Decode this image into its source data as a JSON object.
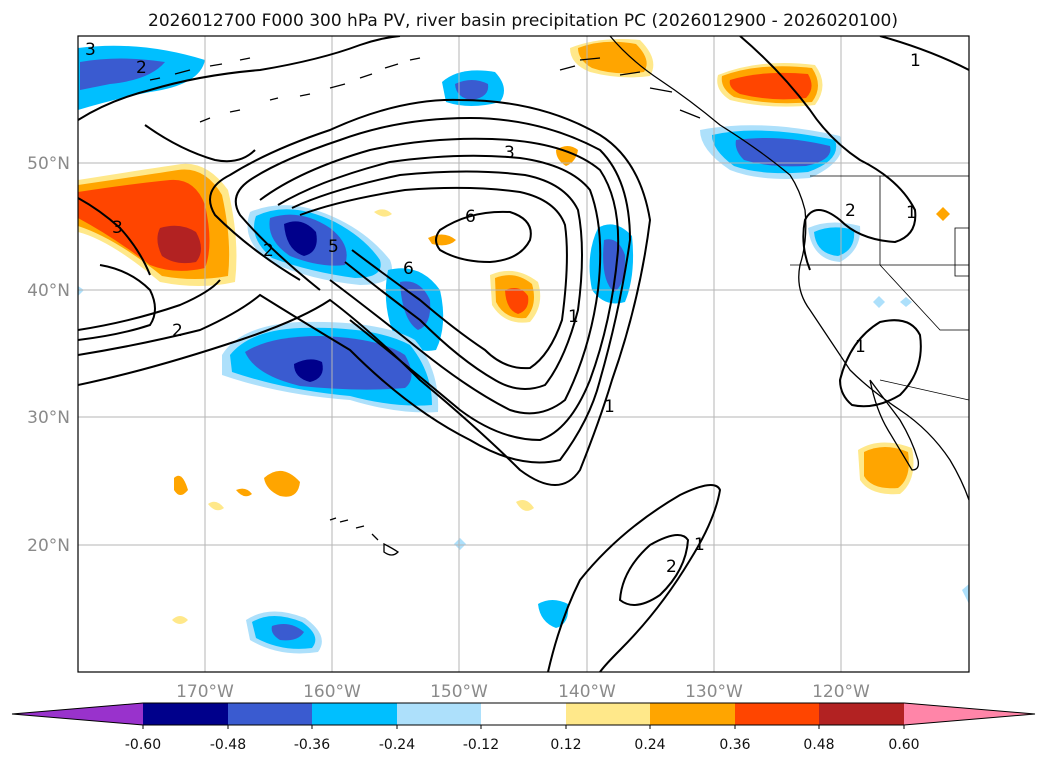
{
  "title": "2026012700 F000 300 hPa PV, river basin precipitation PC (2026012900 - 2026020100)",
  "map": {
    "lat_ticks": [
      "50°N",
      "40°N",
      "30°N",
      "20°N"
    ],
    "lon_ticks": [
      "170°W",
      "160°W",
      "150°W",
      "140°W",
      "130°W",
      "120°W"
    ],
    "extent": {
      "lon": [
        -180,
        -110
      ],
      "lat": [
        10,
        60
      ]
    }
  },
  "pv_contour_labels": [
    "3",
    "2",
    "3",
    "2",
    "3",
    "6",
    "2",
    "5",
    "6",
    "1",
    "1",
    "2",
    "1",
    "2",
    "1",
    "1",
    "1"
  ],
  "colorbar": {
    "ticks": [
      "-0.60",
      "-0.48",
      "-0.36",
      "-0.24",
      "-0.12",
      "0.12",
      "0.24",
      "0.36",
      "0.48",
      "0.60"
    ],
    "colors": {
      "lt_-0.60": "#9932cc",
      "-0.60_-0.48": "#00008b",
      "-0.48_-0.36": "#3a5bd0",
      "-0.36_-0.24": "#00bfff",
      "-0.24_-0.12": "#ade0fb",
      "-0.12_0.12": "#ffffff",
      "0.12_0.24": "#ffe88a",
      "0.24_0.36": "#ffa500",
      "0.36_0.48": "#ff4500",
      "0.48_0.60": "#b22222",
      "gt_0.60": "#ff85a8"
    }
  }
}
